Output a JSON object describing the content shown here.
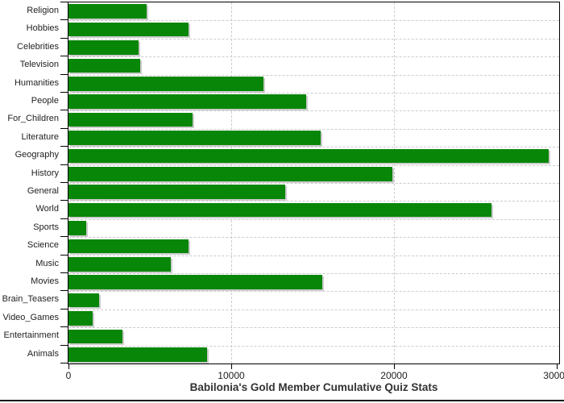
{
  "title": "Babilonia's Gold Member Cumulative Quiz Stats",
  "colors": {
    "bar": "#088608",
    "bar_shadow": "#cccccc",
    "grid": "#cccccc",
    "axis": "#000000",
    "text": "#222222",
    "title_text": "#333333",
    "background": "#ffffff"
  },
  "chart_data": {
    "type": "bar",
    "orientation": "horizontal",
    "title": "Babilonia's Gold Member Cumulative Quiz Stats",
    "categories": [
      "Religion",
      "Hobbies",
      "Celebrities",
      "Television",
      "Humanities",
      "People",
      "For_Children",
      "Literature",
      "Geography",
      "History",
      "General",
      "World",
      "Sports",
      "Science",
      "Music",
      "Movies",
      "Brain_Teasers",
      "Video_Games",
      "Entertainment",
      "Animals"
    ],
    "values": [
      4800,
      7400,
      4300,
      4400,
      12000,
      14600,
      7600,
      15500,
      29500,
      19900,
      13300,
      26000,
      1100,
      7400,
      6300,
      15600,
      1900,
      1500,
      3300,
      8500
    ],
    "xlabel": "",
    "ylabel": "",
    "x_ticks": [
      0,
      10000,
      20000,
      30000
    ],
    "x_tick_labels": [
      "0",
      "10000",
      "20000",
      "30000"
    ],
    "xlim": [
      0,
      30150
    ],
    "grid": true,
    "legend_position": "none"
  }
}
